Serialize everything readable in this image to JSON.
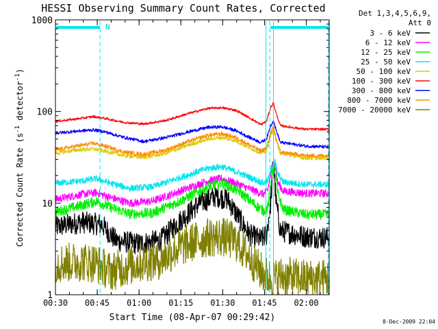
{
  "chart_data": {
    "type": "line",
    "title": "HESSI Observing Summary Count Rates, Corrected",
    "xlabel": "Start Time (08-Apr-07 00:29:42)",
    "ylabel_main": "Corrected Count Rate (s",
    "ylabel_sup1": "-1",
    "ylabel_mid": " detector",
    "ylabel_sup2": "-1",
    "ylabel_end": ")",
    "x_range_minutes": [
      0.3,
      98.5
    ],
    "ylim": [
      1,
      1000
    ],
    "y_scale": "log",
    "x_ticks": [
      {
        "label": "00:30",
        "minute": 0.3
      },
      {
        "label": "00:45",
        "minute": 15.3
      },
      {
        "label": "01:00",
        "minute": 30.3
      },
      {
        "label": "01:15",
        "minute": 45.3
      },
      {
        "label": "01:30",
        "minute": 60.3
      },
      {
        "label": "01:45",
        "minute": 75.3
      },
      {
        "label": "02:00",
        "minute": 90.3
      }
    ],
    "y_ticks": [
      {
        "label": "1",
        "value": 1
      },
      {
        "label": "10",
        "value": 10
      },
      {
        "label": "100",
        "value": 100
      },
      {
        "label": "1000",
        "value": 1000
      }
    ],
    "legend_header": [
      "Det 1,3,4,5,6,9,",
      "Att 0"
    ],
    "legend_placement": "right",
    "timestamp": "8-Dec-2009 22:04",
    "annotation": "N",
    "markers": {
      "night_bar_color": "#00e5ee",
      "night_bars": [
        [
          0.3,
          16.3
        ],
        [
          77.2,
          98.2
        ]
      ],
      "dashed_lines": [
        16.3,
        77.2,
        98.2
      ],
      "solid_line": 75.8,
      "saa_line": 78.5
    },
    "series": [
      {
        "name": "3 - 6 keV",
        "color": "#000000",
        "noise": 0.28,
        "points": [
          [
            0.3,
            5.5
          ],
          [
            10,
            6.2
          ],
          [
            17,
            5.8
          ],
          [
            22,
            3.9
          ],
          [
            30,
            3.6
          ],
          [
            38,
            3.9
          ],
          [
            44,
            6
          ],
          [
            52,
            10
          ],
          [
            58,
            12
          ],
          [
            62,
            11
          ],
          [
            66,
            7
          ],
          [
            70,
            4.5
          ],
          [
            74,
            4
          ],
          [
            76,
            4.5
          ],
          [
            77.5,
            10
          ],
          [
            78.5,
            30
          ],
          [
            79.5,
            10
          ],
          [
            81,
            5
          ],
          [
            90,
            4.3
          ],
          [
            98.5,
            4.2
          ]
        ]
      },
      {
        "name": "6 - 12 keV",
        "color": "#ff00ff",
        "noise": 0.1,
        "points": [
          [
            0.3,
            11
          ],
          [
            10,
            12.5
          ],
          [
            15,
            13
          ],
          [
            20,
            11.5
          ],
          [
            27,
            10
          ],
          [
            35,
            10.5
          ],
          [
            45,
            13.5
          ],
          [
            55,
            17.5
          ],
          [
            60,
            18.5
          ],
          [
            66,
            16
          ],
          [
            72,
            13.5
          ],
          [
            75,
            12.5
          ],
          [
            76.5,
            14
          ],
          [
            78,
            25
          ],
          [
            79,
            28
          ],
          [
            80,
            17
          ],
          [
            82,
            13.5
          ],
          [
            90,
            12.8
          ],
          [
            98.5,
            12.8
          ]
        ]
      },
      {
        "name": "12 - 25 keV",
        "color": "#00ee00",
        "noise": 0.13,
        "points": [
          [
            0.3,
            8
          ],
          [
            10,
            9.5
          ],
          [
            15,
            10.5
          ],
          [
            20,
            9
          ],
          [
            27,
            7.6
          ],
          [
            35,
            7.8
          ],
          [
            45,
            10.5
          ],
          [
            55,
            15
          ],
          [
            60,
            16.5
          ],
          [
            66,
            13.5
          ],
          [
            72,
            9.5
          ],
          [
            75,
            8.2
          ],
          [
            76.5,
            9
          ],
          [
            78,
            22
          ],
          [
            79,
            26
          ],
          [
            80,
            13
          ],
          [
            82,
            8.5
          ],
          [
            90,
            7.5
          ],
          [
            98.5,
            7.5
          ]
        ]
      },
      {
        "name": "25 - 50 keV",
        "color": "#00e5ee",
        "noise": 0.08,
        "points": [
          [
            0.3,
            16.5
          ],
          [
            10,
            17.5
          ],
          [
            15,
            18.5
          ],
          [
            20,
            16.5
          ],
          [
            27,
            14.5
          ],
          [
            35,
            15
          ],
          [
            45,
            19
          ],
          [
            55,
            24
          ],
          [
            60,
            25
          ],
          [
            66,
            21.5
          ],
          [
            72,
            18
          ],
          [
            75,
            16.5
          ],
          [
            76.5,
            17.5
          ],
          [
            78,
            25
          ],
          [
            79,
            29
          ],
          [
            80,
            21
          ],
          [
            82,
            17
          ],
          [
            90,
            16
          ],
          [
            98.5,
            16
          ]
        ]
      },
      {
        "name": "50 - 100 keV",
        "color": "#ddcc00",
        "noise": 0.05,
        "points": [
          [
            0.3,
            35
          ],
          [
            8,
            38
          ],
          [
            14,
            39
          ],
          [
            18,
            37
          ],
          [
            25,
            33
          ],
          [
            32,
            31.5
          ],
          [
            40,
            35
          ],
          [
            48,
            43
          ],
          [
            55,
            50
          ],
          [
            60,
            52
          ],
          [
            65,
            48
          ],
          [
            70,
            40
          ],
          [
            74,
            35.5
          ],
          [
            76,
            37
          ],
          [
            77.5,
            55
          ],
          [
            78.5,
            63
          ],
          [
            79.5,
            48
          ],
          [
            81,
            35
          ],
          [
            90,
            31
          ],
          [
            98.5,
            31
          ]
        ]
      },
      {
        "name": "100 - 300 keV",
        "color": "#ff0000",
        "noise": 0.03,
        "points": [
          [
            0.3,
            78
          ],
          [
            8,
            83
          ],
          [
            14,
            88
          ],
          [
            18,
            84
          ],
          [
            25,
            76
          ],
          [
            32,
            73
          ],
          [
            40,
            80
          ],
          [
            48,
            95
          ],
          [
            55,
            108
          ],
          [
            60,
            110
          ],
          [
            65,
            103
          ],
          [
            70,
            85
          ],
          [
            74,
            72
          ],
          [
            76,
            78
          ],
          [
            77.5,
            110
          ],
          [
            78.5,
            125
          ],
          [
            79.5,
            95
          ],
          [
            81,
            70
          ],
          [
            90,
            64
          ],
          [
            98.5,
            64
          ]
        ]
      },
      {
        "name": "300 - 800 keV",
        "color": "#0000ff",
        "noise": 0.04,
        "points": [
          [
            0.3,
            58
          ],
          [
            8,
            61
          ],
          [
            14,
            63
          ],
          [
            18,
            60
          ],
          [
            25,
            52
          ],
          [
            32,
            47
          ],
          [
            40,
            52
          ],
          [
            48,
            60
          ],
          [
            55,
            67
          ],
          [
            60,
            68
          ],
          [
            65,
            62
          ],
          [
            70,
            52
          ],
          [
            74,
            46
          ],
          [
            76,
            50
          ],
          [
            77.5,
            70
          ],
          [
            78.5,
            80
          ],
          [
            79.5,
            62
          ],
          [
            81,
            46
          ],
          [
            90,
            42
          ],
          [
            98.5,
            41
          ]
        ]
      },
      {
        "name": "800 - 7000 keV",
        "color": "#ff8c00",
        "noise": 0.05,
        "points": [
          [
            0.3,
            38
          ],
          [
            8,
            42
          ],
          [
            14,
            45
          ],
          [
            18,
            42
          ],
          [
            25,
            36
          ],
          [
            32,
            34
          ],
          [
            40,
            38
          ],
          [
            48,
            47
          ],
          [
            55,
            55
          ],
          [
            60,
            57
          ],
          [
            65,
            52
          ],
          [
            70,
            43
          ],
          [
            74,
            37
          ],
          [
            76,
            40
          ],
          [
            77.5,
            58
          ],
          [
            78.5,
            68
          ],
          [
            79.5,
            50
          ],
          [
            81,
            36
          ],
          [
            90,
            33
          ],
          [
            98.5,
            33
          ]
        ]
      },
      {
        "name": "7000 - 20000 keV",
        "color": "#808000",
        "noise": 0.5,
        "points": [
          [
            0.3,
            2.2
          ],
          [
            10,
            2.3
          ],
          [
            15,
            2.2
          ],
          [
            20,
            1.8
          ],
          [
            25,
            2
          ],
          [
            30,
            2.2
          ],
          [
            38,
            2.4
          ],
          [
            44,
            3.2
          ],
          [
            50,
            3.8
          ],
          [
            55,
            4.2
          ],
          [
            60,
            4.3
          ],
          [
            65,
            3.8
          ],
          [
            69,
            2.8
          ],
          [
            74,
            1.8
          ],
          [
            76,
            1.6
          ],
          [
            77.5,
            1.5
          ],
          [
            79.5,
            1.5
          ],
          [
            81,
            1.6
          ],
          [
            90,
            1.5
          ],
          [
            98.5,
            1.5
          ]
        ]
      }
    ]
  }
}
